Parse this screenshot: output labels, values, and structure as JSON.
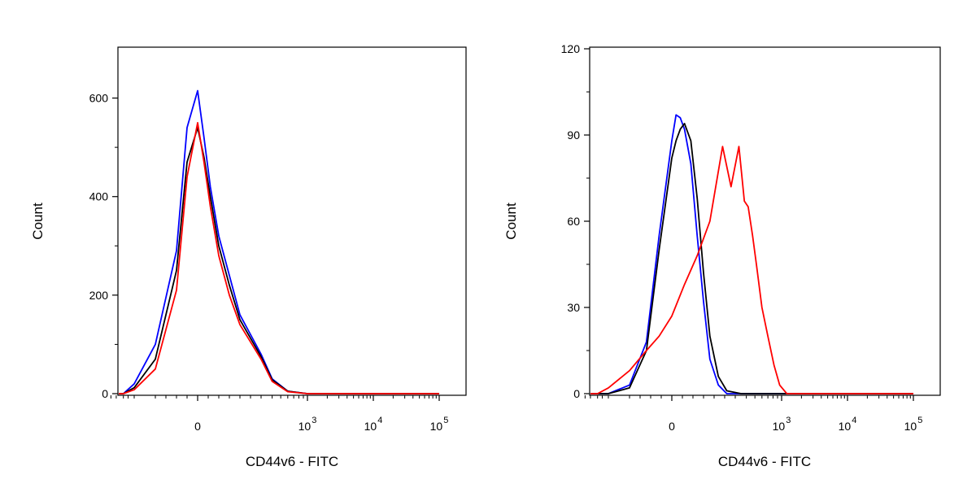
{
  "chart_data": [
    {
      "type": "line",
      "panel": "left",
      "xlabel": "CD44v6 - FITC",
      "ylabel": "Count",
      "xscale": "biexponential",
      "ylim": [
        0,
        700
      ],
      "yticks": [
        "0",
        "200",
        "400",
        "600"
      ],
      "ytick_values": [
        0,
        200,
        400,
        600
      ],
      "xticks": [
        {
          "base": "0",
          "exp": "",
          "value": 0
        },
        {
          "base": "10",
          "exp": "3",
          "value": 1000
        },
        {
          "base": "10",
          "exp": "4",
          "value": 10000
        },
        {
          "base": "10",
          "exp": "5",
          "value": 100000
        }
      ],
      "series": [
        {
          "color": "#0000ff",
          "x": [
            -1000,
            -500,
            -300,
            -200,
            -100,
            -50,
            0,
            30,
            60,
            100,
            150,
            200,
            300,
            400,
            600,
            1000,
            100000
          ],
          "y": [
            0,
            0,
            20,
            100,
            290,
            540,
            615,
            520,
            420,
            320,
            240,
            160,
            80,
            30,
            5,
            0,
            0
          ]
        },
        {
          "color": "#000000",
          "x": [
            -1000,
            -500,
            -300,
            -200,
            -100,
            -50,
            0,
            30,
            60,
            100,
            150,
            200,
            300,
            400,
            600,
            1000,
            100000
          ],
          "y": [
            0,
            0,
            12,
            70,
            250,
            470,
            540,
            480,
            400,
            300,
            220,
            150,
            75,
            28,
            5,
            0,
            0
          ]
        },
        {
          "color": "#ff0000",
          "x": [
            -1000,
            -500,
            -300,
            -200,
            -100,
            -50,
            0,
            30,
            60,
            100,
            150,
            200,
            300,
            400,
            600,
            1000,
            100000
          ],
          "y": [
            0,
            0,
            8,
            50,
            210,
            440,
            550,
            470,
            380,
            280,
            200,
            140,
            70,
            25,
            4,
            0,
            0
          ]
        }
      ]
    },
    {
      "type": "line",
      "panel": "right",
      "xlabel": "CD44v6 - FITC",
      "ylabel": "Count",
      "xscale": "biexponential",
      "ylim": [
        0,
        120
      ],
      "yticks": [
        "0",
        "30",
        "60",
        "90",
        "120"
      ],
      "ytick_values": [
        0,
        30,
        60,
        90,
        120
      ],
      "xticks": [
        {
          "base": "0",
          "exp": "",
          "value": 0
        },
        {
          "base": "10",
          "exp": "3",
          "value": 1000
        },
        {
          "base": "10",
          "exp": "4",
          "value": 10000
        },
        {
          "base": "10",
          "exp": "5",
          "value": 100000
        }
      ],
      "series": [
        {
          "color": "#0000ff",
          "x": [
            -1000,
            -300,
            -200,
            -120,
            -60,
            0,
            20,
            40,
            60,
            90,
            120,
            150,
            180,
            220,
            260,
            350,
            500,
            100000
          ],
          "y": [
            0,
            0,
            3,
            18,
            55,
            88,
            97,
            96,
            92,
            80,
            55,
            32,
            12,
            3,
            0,
            0,
            0,
            0
          ]
        },
        {
          "color": "#000000",
          "x": [
            -1000,
            -300,
            -200,
            -120,
            -60,
            0,
            20,
            40,
            60,
            90,
            120,
            150,
            180,
            220,
            260,
            350,
            500,
            100000
          ],
          "y": [
            0,
            0,
            2,
            15,
            50,
            82,
            88,
            92,
            94,
            88,
            68,
            42,
            20,
            6,
            1,
            0,
            0,
            0
          ]
        },
        {
          "color": "#ff0000",
          "x": [
            -1000,
            -500,
            -300,
            -200,
            -120,
            -60,
            0,
            60,
            120,
            180,
            240,
            280,
            330,
            380,
            420,
            470,
            520,
            600,
            700,
            820,
            950,
            1200,
            100000
          ],
          "y": [
            0,
            0,
            2,
            8,
            15,
            20,
            27,
            38,
            48,
            60,
            86,
            72,
            86,
            67,
            65,
            55,
            45,
            30,
            20,
            10,
            3,
            0,
            0
          ]
        }
      ]
    }
  ]
}
